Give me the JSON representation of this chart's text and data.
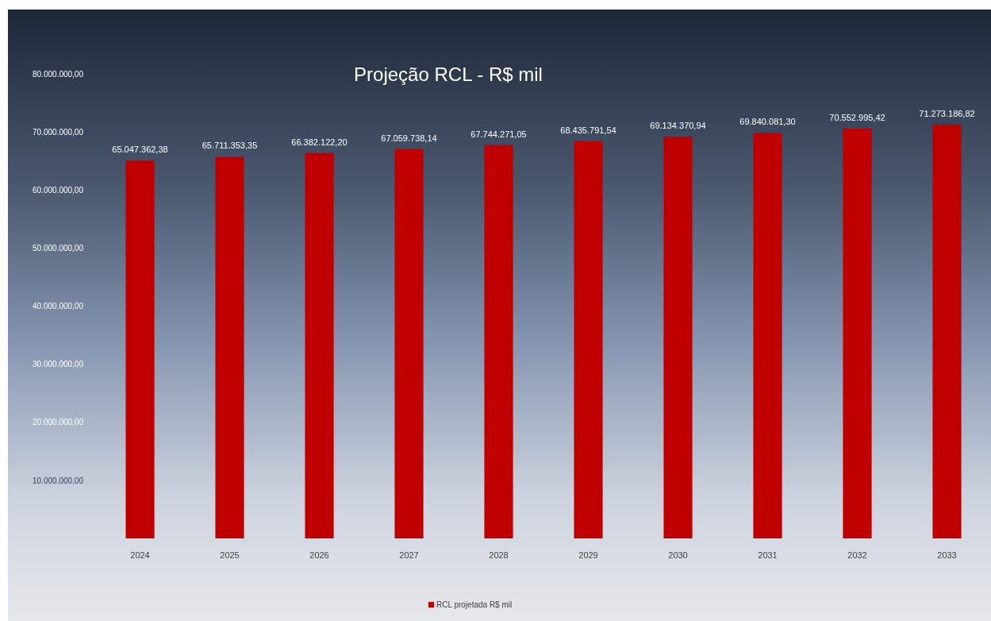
{
  "chart_data": {
    "type": "bar",
    "title": "Projeção RCL - R$ mil",
    "categories": [
      "2024",
      "2025",
      "2026",
      "2027",
      "2028",
      "2029",
      "2030",
      "2031",
      "2032",
      "2033"
    ],
    "series": [
      {
        "name": "RCL projetada R$ mil",
        "color": "#c00000",
        "values": [
          65047362.38,
          65711353.35,
          66382122.2,
          67059738.14,
          67744271.05,
          68435791.54,
          69134370.94,
          69840081.3,
          70552995.42,
          71273186.82
        ],
        "value_labels": [
          "65.047.362,38",
          "65.711.353,35",
          "66.382.122,20",
          "67.059.738,14",
          "67.744.271,05",
          "68.435.791,54",
          "69.134.370,94",
          "69.840.081,30",
          "70.552.995,42",
          "71.273.186,82"
        ]
      }
    ],
    "ylim": [
      0,
      80000000
    ],
    "yticks": [
      {
        "value": 10000000,
        "label": "10.000.000,00"
      },
      {
        "value": 20000000,
        "label": "20.000.000,00"
      },
      {
        "value": 30000000,
        "label": "30.000.000,00"
      },
      {
        "value": 40000000,
        "label": "40.000.000,00"
      },
      {
        "value": 50000000,
        "label": "50.000.000,00"
      },
      {
        "value": 60000000,
        "label": "60.000.000,00"
      },
      {
        "value": 70000000,
        "label": "70.000.000,00"
      },
      {
        "value": 80000000,
        "label": "80.000.000,00"
      }
    ],
    "legend": "bottom"
  }
}
